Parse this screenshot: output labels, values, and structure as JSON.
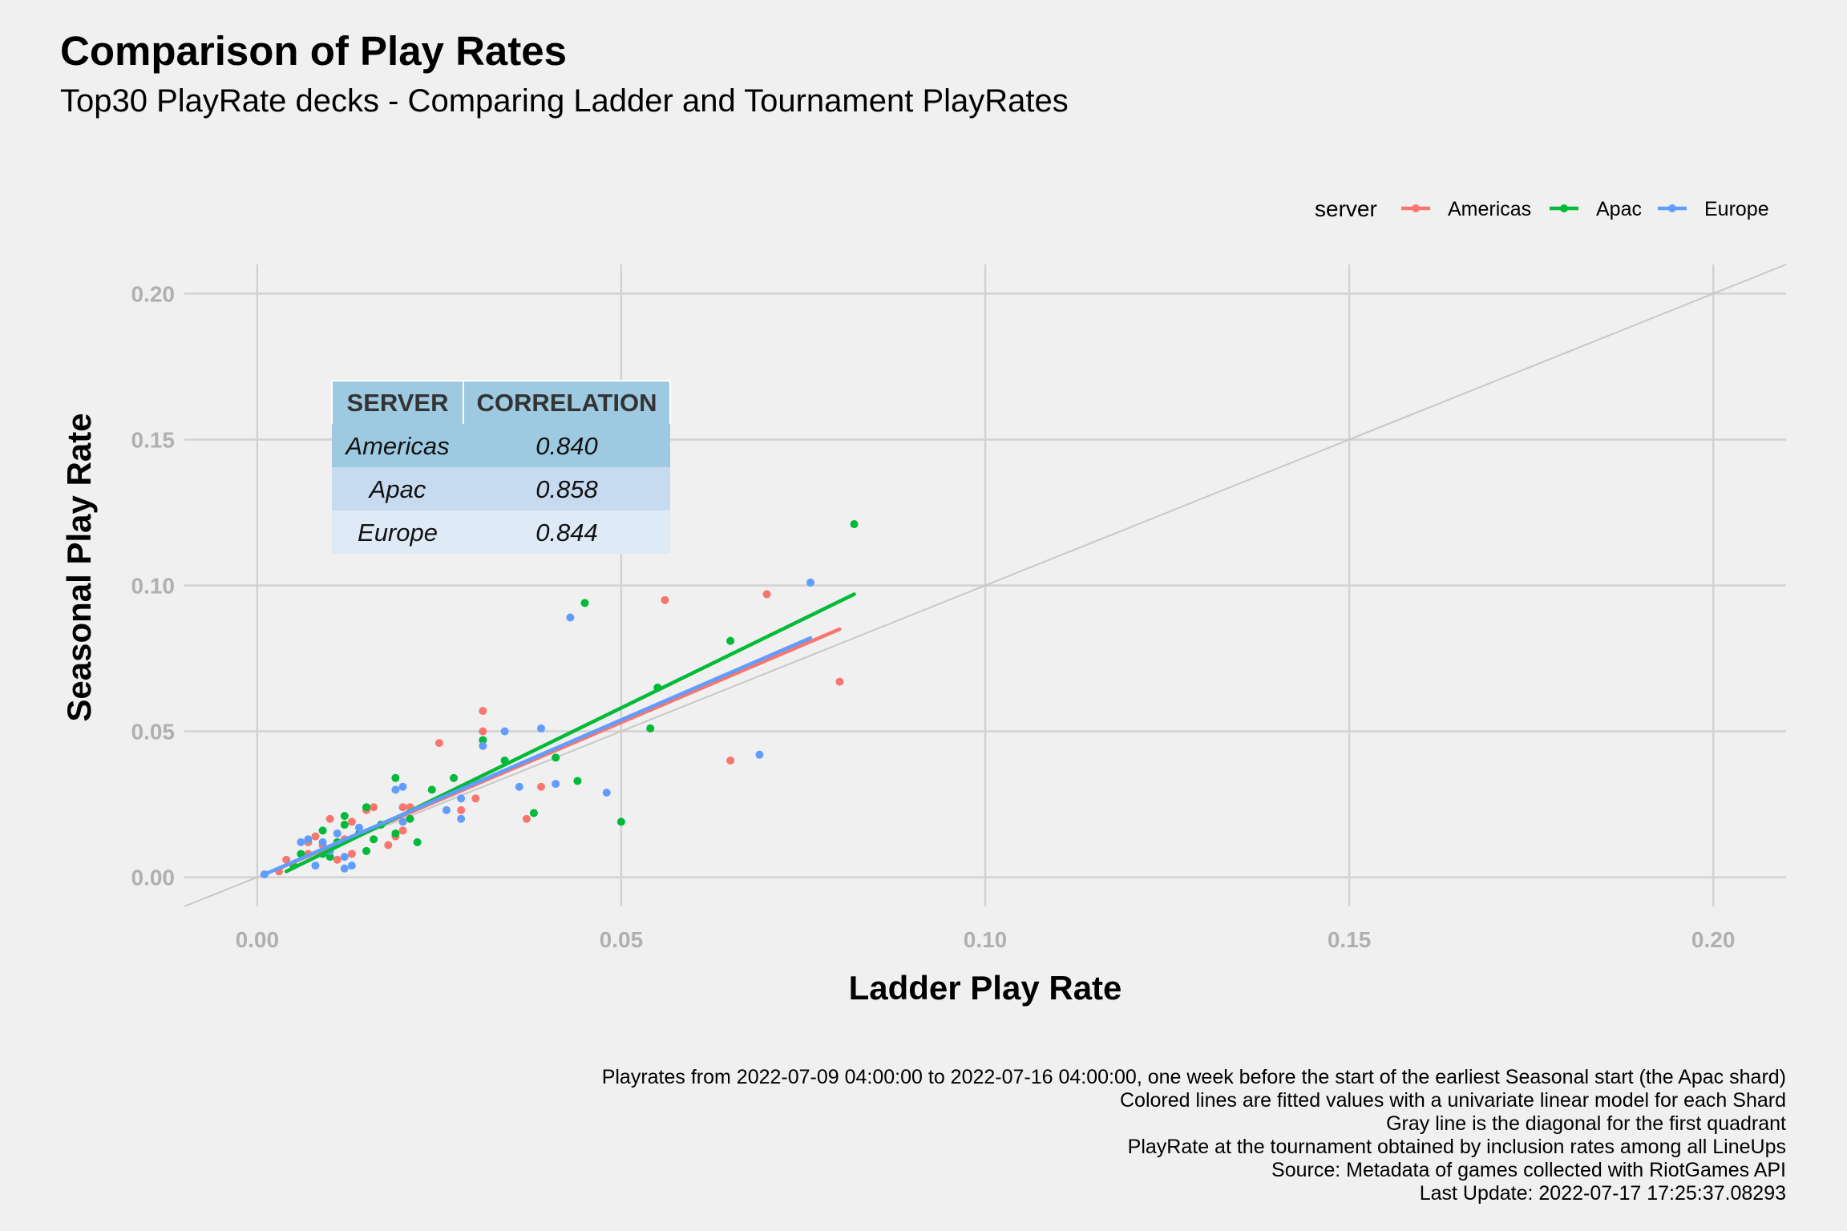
{
  "title": "Comparison of Play Rates",
  "subtitle": "Top30 PlayRate decks - Comparing Ladder and Tournament PlayRates",
  "legend": {
    "title": "server",
    "items": [
      {
        "label": "Americas",
        "color": "#f8766d"
      },
      {
        "label": "Apac",
        "color": "#00ba38"
      },
      {
        "label": "Europe",
        "color": "#619cff"
      }
    ]
  },
  "correlation_table": {
    "headers": [
      "SERVER",
      "CORRELATION"
    ],
    "rows": [
      {
        "server": "Americas",
        "correlation": "0.840"
      },
      {
        "server": "Apac",
        "correlation": "0.858"
      },
      {
        "server": "Europe",
        "correlation": "0.844"
      }
    ]
  },
  "caption": [
    "Playrates from 2022-07-09 04:00:00 to 2022-07-16 04:00:00, one week before the start of the earliest Seasonal start (the Apac shard)",
    "Colored lines are fitted values with a univariate linear model for each Shard",
    "Gray line is the diagonal for the first quadrant",
    "PlayRate at the tournament obtained by inclusion rates among all LineUps",
    "Source: Metadata of games collected with RiotGames API",
    "Last Update: 2022-07-17 17:25:37.08293"
  ],
  "chart_data": {
    "type": "scatter",
    "xlabel": "Ladder Play Rate",
    "ylabel": "Seasonal Play Rate",
    "xlim": [
      -0.01,
      0.21
    ],
    "ylim": [
      -0.01,
      0.21
    ],
    "xticks": [
      "0.00",
      "0.05",
      "0.10",
      "0.15",
      "0.20"
    ],
    "yticks": [
      "0.00",
      "0.05",
      "0.10",
      "0.15",
      "0.20"
    ],
    "grid": true,
    "legend_position": "top-right",
    "diagonal": {
      "color": "#c8c8c8"
    },
    "series": [
      {
        "name": "Americas",
        "color": "#f8766d",
        "fit": {
          "x": [
            0.003,
            0.08
          ],
          "y": [
            0.003,
            0.085
          ]
        },
        "points": [
          [
            0.003,
            0.002
          ],
          [
            0.004,
            0.006
          ],
          [
            0.007,
            0.012
          ],
          [
            0.007,
            0.008
          ],
          [
            0.008,
            0.014
          ],
          [
            0.009,
            0.011
          ],
          [
            0.01,
            0.02
          ],
          [
            0.011,
            0.006
          ],
          [
            0.012,
            0.013
          ],
          [
            0.013,
            0.019
          ],
          [
            0.013,
            0.008
          ],
          [
            0.015,
            0.023
          ],
          [
            0.016,
            0.024
          ],
          [
            0.018,
            0.011
          ],
          [
            0.019,
            0.014
          ],
          [
            0.02,
            0.016
          ],
          [
            0.02,
            0.024
          ],
          [
            0.021,
            0.024
          ],
          [
            0.025,
            0.046
          ],
          [
            0.028,
            0.023
          ],
          [
            0.03,
            0.027
          ],
          [
            0.031,
            0.057
          ],
          [
            0.031,
            0.05
          ],
          [
            0.037,
            0.02
          ],
          [
            0.039,
            0.031
          ],
          [
            0.056,
            0.095
          ],
          [
            0.065,
            0.04
          ],
          [
            0.07,
            0.097
          ],
          [
            0.08,
            0.067
          ]
        ]
      },
      {
        "name": "Apac",
        "color": "#00ba38",
        "fit": {
          "x": [
            0.004,
            0.082
          ],
          "y": [
            0.002,
            0.097
          ]
        },
        "points": [
          [
            0.005,
            0.004
          ],
          [
            0.006,
            0.008
          ],
          [
            0.009,
            0.008
          ],
          [
            0.009,
            0.016
          ],
          [
            0.01,
            0.007
          ],
          [
            0.011,
            0.012
          ],
          [
            0.012,
            0.018
          ],
          [
            0.012,
            0.021
          ],
          [
            0.014,
            0.015
          ],
          [
            0.015,
            0.009
          ],
          [
            0.015,
            0.024
          ],
          [
            0.016,
            0.013
          ],
          [
            0.017,
            0.018
          ],
          [
            0.019,
            0.015
          ],
          [
            0.019,
            0.034
          ],
          [
            0.021,
            0.02
          ],
          [
            0.022,
            0.012
          ],
          [
            0.024,
            0.03
          ],
          [
            0.027,
            0.034
          ],
          [
            0.031,
            0.047
          ],
          [
            0.034,
            0.04
          ],
          [
            0.038,
            0.022
          ],
          [
            0.041,
            0.041
          ],
          [
            0.044,
            0.033
          ],
          [
            0.045,
            0.094
          ],
          [
            0.05,
            0.019
          ],
          [
            0.054,
            0.051
          ],
          [
            0.055,
            0.065
          ],
          [
            0.065,
            0.081
          ],
          [
            0.082,
            0.121
          ]
        ]
      },
      {
        "name": "Europe",
        "color": "#619cff",
        "fit": {
          "x": [
            0.001,
            0.076
          ],
          "y": [
            0.001,
            0.082
          ]
        },
        "points": [
          [
            0.001,
            0.001
          ],
          [
            0.006,
            0.012
          ],
          [
            0.007,
            0.013
          ],
          [
            0.008,
            0.004
          ],
          [
            0.009,
            0.012
          ],
          [
            0.01,
            0.009
          ],
          [
            0.011,
            0.015
          ],
          [
            0.012,
            0.007
          ],
          [
            0.012,
            0.003
          ],
          [
            0.013,
            0.004
          ],
          [
            0.014,
            0.017
          ],
          [
            0.019,
            0.03
          ],
          [
            0.02,
            0.019
          ],
          [
            0.02,
            0.031
          ],
          [
            0.026,
            0.023
          ],
          [
            0.028,
            0.02
          ],
          [
            0.028,
            0.027
          ],
          [
            0.031,
            0.045
          ],
          [
            0.034,
            0.05
          ],
          [
            0.036,
            0.031
          ],
          [
            0.039,
            0.051
          ],
          [
            0.041,
            0.032
          ],
          [
            0.043,
            0.089
          ],
          [
            0.048,
            0.029
          ],
          [
            0.069,
            0.042
          ],
          [
            0.076,
            0.101
          ]
        ]
      }
    ]
  }
}
